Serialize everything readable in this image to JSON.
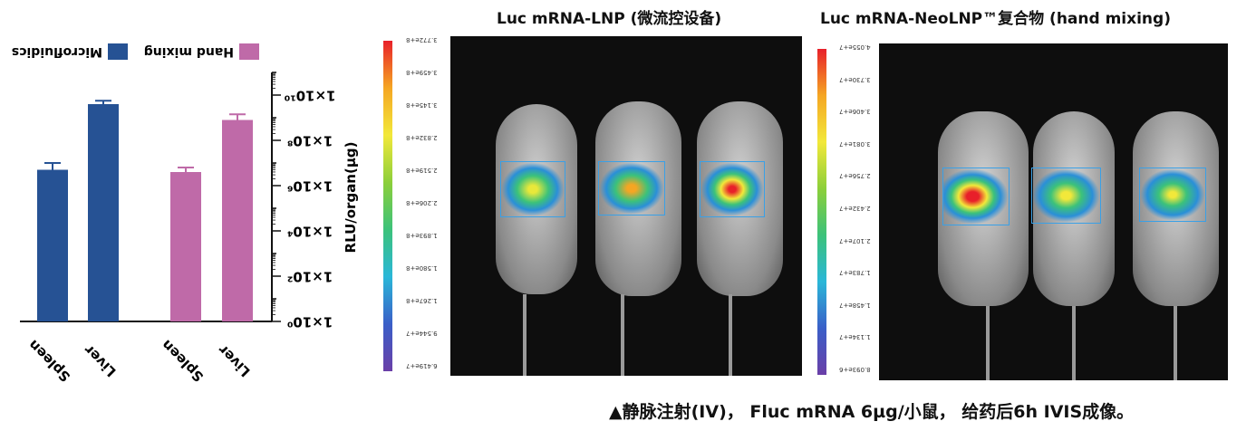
{
  "chart_data": {
    "type": "bar",
    "scale": "log",
    "categories": [
      "Liver",
      "Spleen",
      "Liver",
      "Spleen"
    ],
    "ylabel": "RLU/organ(µg)",
    "ytick_labels": [
      "1×10⁰",
      "1×10²",
      "1×10⁴",
      "1×10⁶",
      "1×10⁸",
      "1×10¹⁰"
    ],
    "ylim_exp": [
      0,
      11
    ],
    "series": [
      {
        "name": "Hand mixing",
        "color": "#bf6aa8",
        "values_exp": [
          8.9,
          6.6
        ],
        "err_exp": [
          0.25,
          0.2
        ]
      },
      {
        "name": "Microfluidics",
        "color": "#265294",
        "values_exp": [
          9.6,
          6.7
        ],
        "err_exp": [
          0.15,
          0.3
        ]
      }
    ]
  },
  "panels": {
    "left_title": "Luc mRNA-LNP (微流控设备)",
    "right_title": "Luc mRNA-NeoLNP™复合物 (hand mixing)",
    "left_scale": [
      "3.772e+8",
      "3.459e+8",
      "3.145e+8",
      "2.832e+8",
      "2.519e+8",
      "2.206e+8",
      "1.893e+8",
      "1.580e+8",
      "1.267e+8",
      "9.544e+7",
      "6.419e+7"
    ],
    "right_scale": [
      "4.055e+7",
      "3.730e+7",
      "3.406e+7",
      "3.081e+7",
      "2.756e+7",
      "2.432e+7",
      "2.107e+7",
      "1.783e+7",
      "1.458e+7",
      "1.134e+7",
      "8.093e+6"
    ]
  },
  "caption": "▲静脉注射(IV)， Fluc mRNA 6µg/小鼠， 给药后6h IVIS成像。"
}
